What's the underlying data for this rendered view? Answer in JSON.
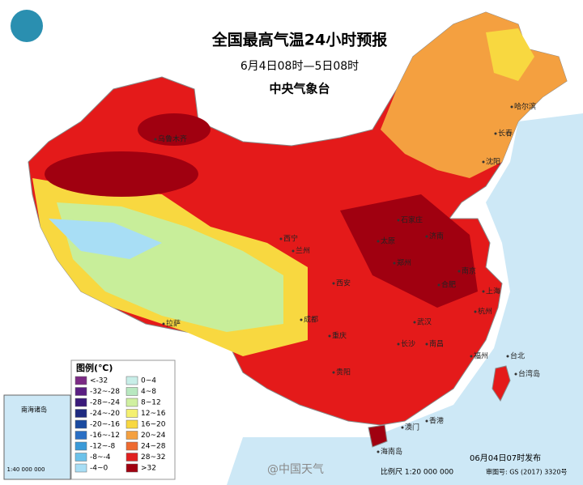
{
  "header": {
    "title": "全国最高气温24小时预报",
    "subtitle": "6月4日08时—5日08时",
    "agency": "中央气象台"
  },
  "legend": {
    "title": "图例(℃)",
    "items": [
      {
        "label": "<-32",
        "color": "#7b2a85"
      },
      {
        "label": "-32~-28",
        "color": "#5a1e82"
      },
      {
        "label": "-28~-24",
        "color": "#3a1a7a"
      },
      {
        "label": "-24~-20",
        "color": "#1f2a80"
      },
      {
        "label": "-20~-16",
        "color": "#1a4aa0"
      },
      {
        "label": "-16~-12",
        "color": "#2a6fc4"
      },
      {
        "label": "-12~-8",
        "color": "#3a9ad8"
      },
      {
        "label": "-8~-4",
        "color": "#6cc2ea"
      },
      {
        "label": "-4~0",
        "color": "#a8def5"
      },
      {
        "label": "0~4",
        "color": "#c8eee8"
      },
      {
        "label": "4~8",
        "color": "#b8e8c0"
      },
      {
        "label": "8~12",
        "color": "#d0f0a0"
      },
      {
        "label": "12~16",
        "color": "#f4f070"
      },
      {
        "label": "16~20",
        "color": "#f8d840"
      },
      {
        "label": "20~24",
        "color": "#f4a040"
      },
      {
        "label": "24~28",
        "color": "#ee6a30"
      },
      {
        "label": "28~32",
        "color": "#e02020"
      },
      {
        "label": ">32",
        "color": "#a00010"
      }
    ]
  },
  "cities": [
    "乌鲁木齐",
    "哈尔滨",
    "长春",
    "沈阳",
    "石家庄",
    "太原",
    "济南",
    "郑州",
    "西宁",
    "兰州",
    "西安",
    "南京",
    "合肥",
    "上海",
    "杭州",
    "武汉",
    "长沙",
    "南昌",
    "福州",
    "成都",
    "重庆",
    "贵阳",
    "拉萨",
    "台北",
    "香港",
    "澳门",
    "海南岛",
    "台湾岛"
  ],
  "inset": {
    "title": "南海诸岛",
    "scale": "1:40 000 000"
  },
  "footer": {
    "issued": "06月04日07时发布",
    "scale": "比例尺 1:20 000 000",
    "approval": "审图号: GS (2017) 3320号",
    "watermark": "@中国天气"
  }
}
